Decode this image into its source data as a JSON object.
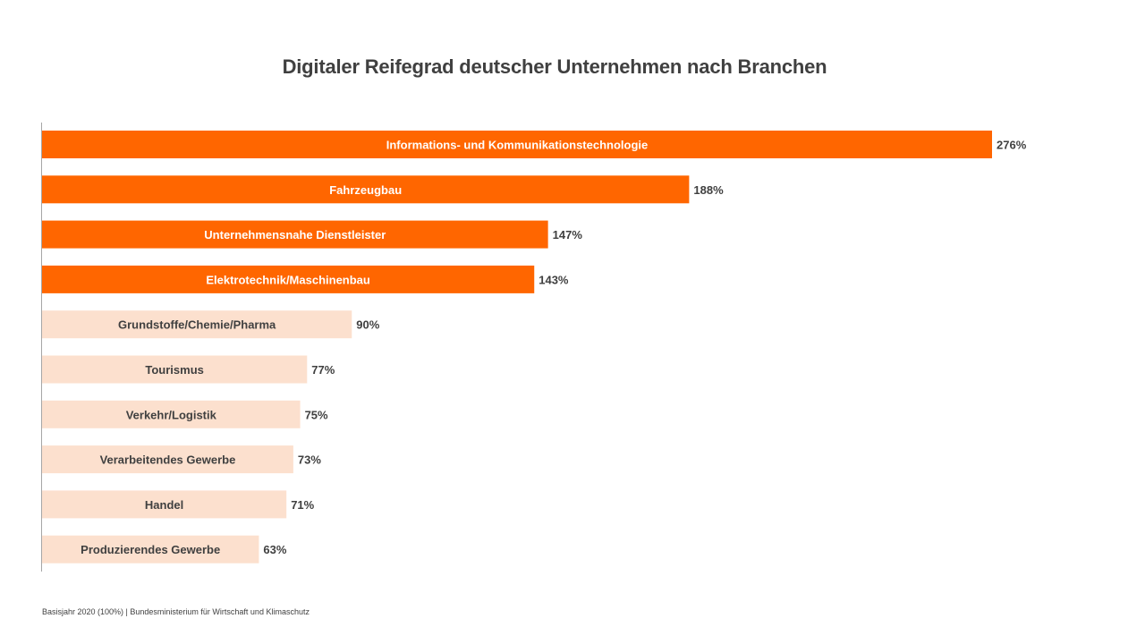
{
  "chart_data": {
    "type": "bar",
    "orientation": "horizontal",
    "title": "Digitaler Reifegrad deutscher Unternehmen nach Branchen",
    "xlabel": "",
    "ylabel": "",
    "unit": "%",
    "xlim": [
      0,
      276
    ],
    "grid": false,
    "legend": "none",
    "categories": [
      "Informations- und Kommunikationstechnologie",
      "Fahrzeugbau",
      "Unternehmensnahe Dienstleister",
      "Elektrotechnik/Maschinenbau",
      "Grundstoffe/Chemie/Pharma",
      "Tourismus",
      "Verkehr/Logistik",
      "Verarbeitendes Gewerbe",
      "Handel",
      "Produzierendes Gewerbe"
    ],
    "values": [
      276,
      188,
      147,
      143,
      90,
      77,
      75,
      73,
      71,
      63
    ],
    "value_labels": [
      "276%",
      "188%",
      "147%",
      "143%",
      "90%",
      "77%",
      "75%",
      "73%",
      "71%",
      "63%"
    ],
    "highlighted": [
      true,
      true,
      true,
      true,
      false,
      false,
      false,
      false,
      false,
      false
    ],
    "colors": {
      "highlight": "#FF6600",
      "normal": "#FCE0CE",
      "highlight_text": "#FFFFFF",
      "normal_text": "#404040",
      "axis": "#A6A6A6"
    }
  },
  "footer": "Basisjahr 2020 (100%) | Bundesministerium für Wirtschaft und Klimaschutz"
}
